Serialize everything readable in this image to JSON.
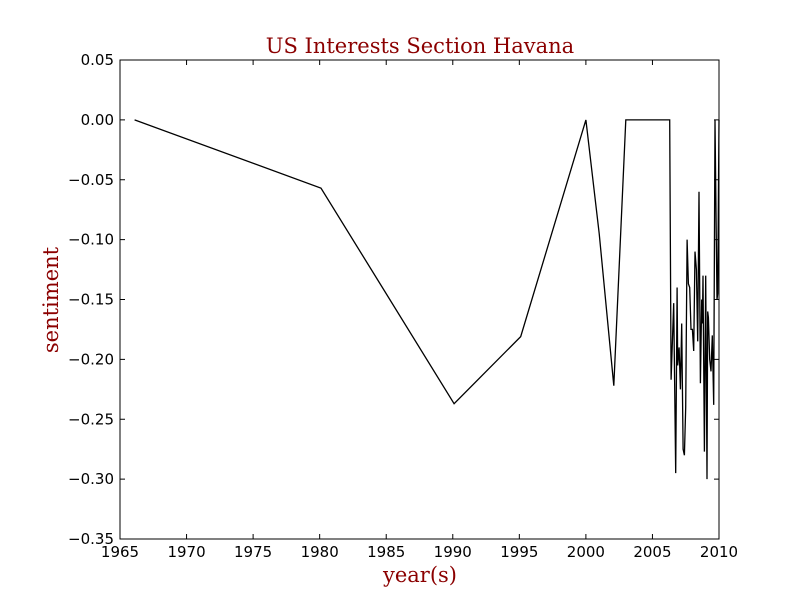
{
  "chart_data": {
    "type": "line",
    "title": "US Interests Section Havana",
    "xlabel": "year(s)",
    "ylabel": "sentiment",
    "xlim": [
      1965,
      2010
    ],
    "ylim": [
      -0.35,
      0.05
    ],
    "xticks": [
      "1965",
      "1970",
      "1975",
      "1980",
      "1985",
      "1990",
      "1995",
      "2000",
      "2005",
      "2010"
    ],
    "yticks": [
      "0.05",
      "0.00",
      "−0.05",
      "−0.10",
      "−0.15",
      "−0.20",
      "−0.25",
      "−0.30",
      "−0.35"
    ],
    "grid": false,
    "legend": "none",
    "colors": {
      "title": "#8b0000",
      "axis_label": "#8b0000",
      "line": "#000000"
    },
    "series": [
      {
        "x": [
          1966.1,
          1980.1,
          1990.1,
          1995.1,
          2000.0,
          2001.0,
          2002.1,
          2003.0,
          2006.3,
          2006.4,
          2006.6,
          2006.75,
          2006.85,
          2006.9,
          2007.0,
          2007.1,
          2007.2,
          2007.3,
          2007.4,
          2007.5,
          2007.6,
          2007.7,
          2007.8,
          2007.9,
          2008.0,
          2008.1,
          2008.2,
          2008.3,
          2008.4,
          2008.5,
          2008.6,
          2008.7,
          2008.75,
          2008.8,
          2008.9,
          2009.0,
          2009.1,
          2009.15,
          2009.2,
          2009.3,
          2009.4,
          2009.5,
          2009.6,
          2009.7,
          2009.8,
          2009.85,
          2009.9,
          2010.0
        ],
        "y": [
          0.0,
          -0.057,
          -0.237,
          -0.181,
          0.0,
          -0.095,
          -0.222,
          0.0,
          0.0,
          -0.217,
          -0.153,
          -0.295,
          -0.14,
          -0.205,
          -0.19,
          -0.225,
          -0.17,
          -0.275,
          -0.28,
          -0.24,
          -0.1,
          -0.137,
          -0.14,
          -0.175,
          -0.175,
          -0.193,
          -0.11,
          -0.125,
          -0.185,
          -0.06,
          -0.22,
          -0.15,
          -0.17,
          -0.13,
          -0.277,
          -0.13,
          -0.3,
          -0.16,
          -0.165,
          -0.2,
          -0.21,
          -0.18,
          -0.238,
          0.0,
          -0.1,
          -0.15,
          -0.145,
          0.0
        ]
      }
    ]
  }
}
